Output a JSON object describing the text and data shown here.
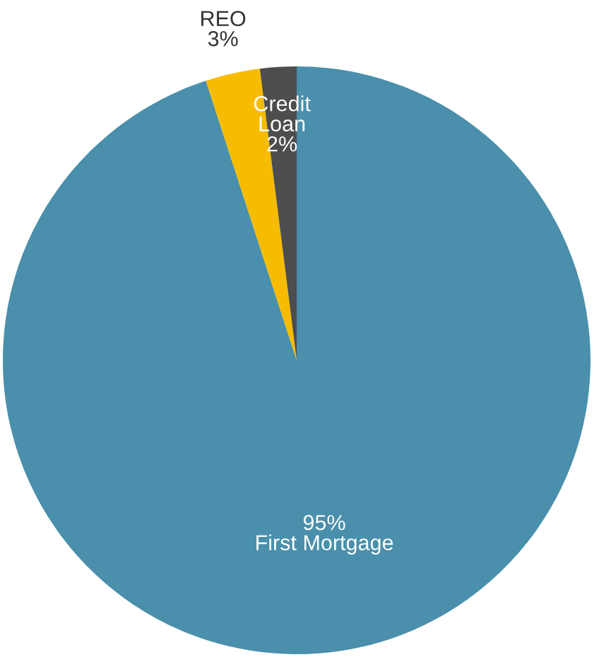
{
  "chart_data": {
    "type": "pie",
    "categories": [
      "First Mortgage",
      "REO",
      "Credit\nLoan"
    ],
    "values": [
      95,
      3,
      2
    ],
    "colors": [
      "#4a8fab",
      "#f7bc00",
      "#4d4d4d"
    ],
    "value_labels": [
      "95%",
      "3%",
      "2%"
    ]
  }
}
